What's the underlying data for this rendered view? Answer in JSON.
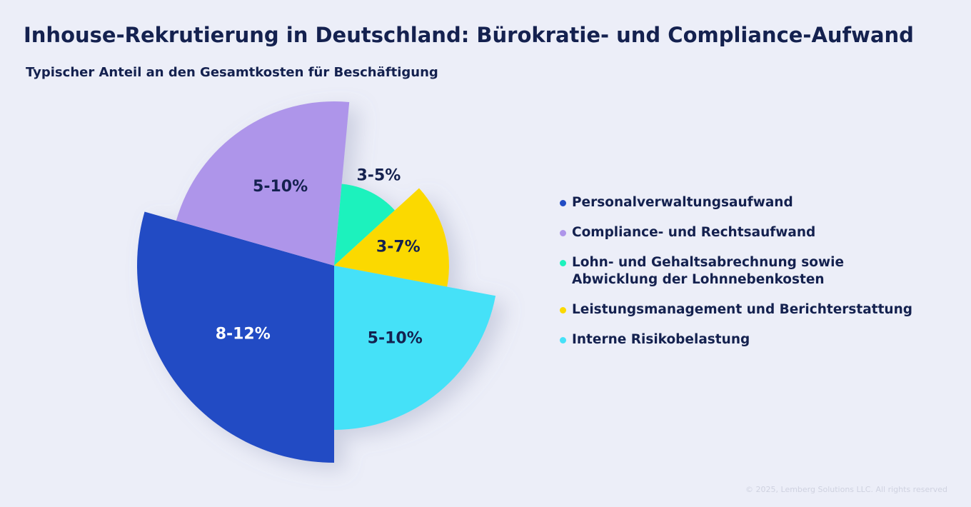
{
  "chart_data": {
    "type": "rose",
    "title": "Inhouse-Rekrutierung in Deutschland: Bürokratie- und Compliance-Aufwand",
    "subtitle": "Typischer Anteil an den Gesamtkosten für Beschäftigung",
    "categories": [
      "Personalverwaltungsaufwand",
      "Compliance- und Rechtsaufwand",
      "Lohn- und Gehaltsabrechnung sowie Abwicklung der Lohnnebenkosten",
      "Leistungsmanagement und Berichterstattung",
      "Interne Risikobelastung"
    ],
    "colors": [
      "#214cc4",
      "#ae95ea",
      "#1ef2bd",
      "#fbd900",
      "#45e1f8"
    ],
    "low": [
      8,
      5,
      3,
      3,
      5
    ],
    "high": [
      12,
      10,
      5,
      7,
      10
    ],
    "value_labels": [
      "8-12%",
      "5-10%",
      "3-5%",
      "3-7%",
      "5-10%"
    ]
  },
  "copyright": "© 2025, Lemberg Solutions LLC. All rights reserved"
}
